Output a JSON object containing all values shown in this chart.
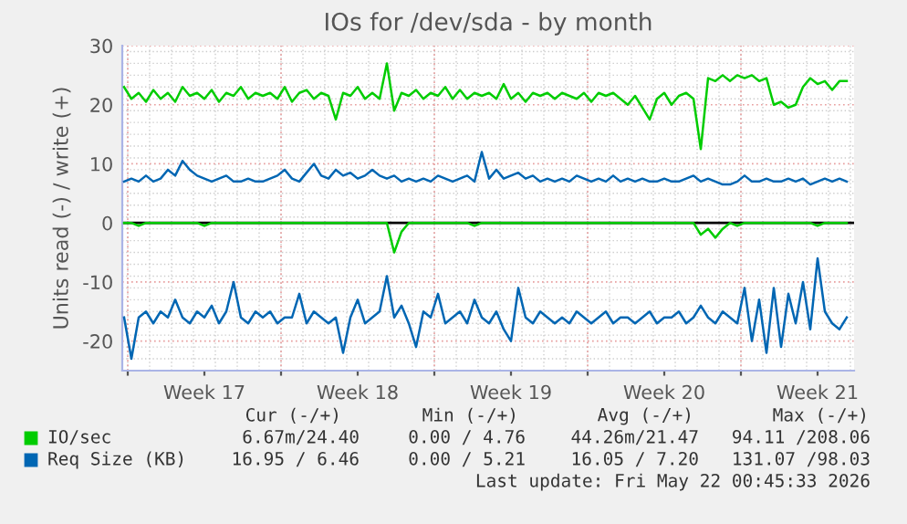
{
  "chart_data": {
    "type": "line",
    "title": "IOs for /dev/sda - by month",
    "ylabel": "Units read (-) / write (+)",
    "x": [
      "2026-04-19T20:00",
      "2026-04-20T04:00",
      "2026-04-20T12:00",
      "2026-04-20T20:00",
      "2026-04-21T04:00",
      "2026-04-21T12:00",
      "2026-04-21T20:00",
      "2026-04-22T04:00",
      "2026-04-22T12:00",
      "2026-04-22T20:00",
      "2026-04-23T04:00",
      "2026-04-23T12:00",
      "2026-04-23T20:00",
      "2026-04-24T04:00",
      "2026-04-24T12:00",
      "2026-04-24T20:00",
      "2026-04-25T04:00",
      "2026-04-25T12:00",
      "2026-04-25T20:00",
      "2026-04-26T04:00",
      "2026-04-26T12:00",
      "2026-04-26T20:00",
      "2026-04-27T04:00",
      "2026-04-27T12:00",
      "2026-04-27T20:00",
      "2026-04-28T04:00",
      "2026-04-28T12:00",
      "2026-04-28T20:00",
      "2026-04-29T04:00",
      "2026-04-29T12:00",
      "2026-04-29T20:00",
      "2026-04-30T04:00",
      "2026-04-30T12:00",
      "2026-04-30T20:00",
      "2026-05-01T04:00",
      "2026-05-01T12:00",
      "2026-05-01T20:00",
      "2026-05-02T04:00",
      "2026-05-02T12:00",
      "2026-05-02T20:00",
      "2026-05-03T04:00",
      "2026-05-03T12:00",
      "2026-05-03T20:00",
      "2026-05-04T04:00",
      "2026-05-04T12:00",
      "2026-05-04T20:00",
      "2026-05-05T04:00",
      "2026-05-05T12:00",
      "2026-05-05T20:00",
      "2026-05-06T04:00",
      "2026-05-06T12:00",
      "2026-05-06T20:00",
      "2026-05-07T04:00",
      "2026-05-07T12:00",
      "2026-05-07T20:00",
      "2026-05-08T04:00",
      "2026-05-08T12:00",
      "2026-05-08T20:00",
      "2026-05-09T04:00",
      "2026-05-09T12:00",
      "2026-05-09T20:00",
      "2026-05-10T04:00",
      "2026-05-10T12:00",
      "2026-05-10T20:00",
      "2026-05-11T04:00",
      "2026-05-11T12:00",
      "2026-05-11T20:00",
      "2026-05-12T04:00",
      "2026-05-12T12:00",
      "2026-05-12T20:00",
      "2026-05-13T04:00",
      "2026-05-13T12:00",
      "2026-05-13T20:00",
      "2026-05-14T04:00",
      "2026-05-14T12:00",
      "2026-05-14T20:00",
      "2026-05-15T04:00",
      "2026-05-15T12:00",
      "2026-05-15T20:00",
      "2026-05-16T04:00",
      "2026-05-16T12:00",
      "2026-05-16T20:00",
      "2026-05-17T04:00",
      "2026-05-17T12:00",
      "2026-05-17T20:00",
      "2026-05-18T04:00",
      "2026-05-18T12:00",
      "2026-05-18T20:00",
      "2026-05-19T04:00",
      "2026-05-19T12:00",
      "2026-05-19T20:00",
      "2026-05-20T04:00",
      "2026-05-20T12:00",
      "2026-05-20T20:00",
      "2026-05-21T04:00",
      "2026-05-21T12:00",
      "2026-05-21T20:00",
      "2026-05-22T04:00",
      "2026-05-22T12:00",
      "2026-05-22T20:00"
    ],
    "series": [
      {
        "name": "IO/sec",
        "color": "#00cc00",
        "values": [
          23,
          21,
          22,
          20.5,
          22.5,
          21,
          22,
          20.5,
          23,
          21.5,
          22,
          21,
          22.5,
          20.5,
          22,
          21.5,
          23,
          21,
          22,
          21.5,
          22,
          21,
          23,
          20.5,
          22,
          22.5,
          21,
          22,
          21.5,
          17.5,
          22,
          21.5,
          23,
          21,
          22,
          21,
          27,
          19,
          22,
          21.5,
          22.5,
          21,
          22,
          21.5,
          23,
          21,
          22.5,
          21,
          22,
          21.5,
          22,
          21,
          23.5,
          21,
          22,
          20.5,
          22,
          21.5,
          22,
          21,
          22,
          21.5,
          21,
          22,
          20.5,
          22,
          21.5,
          22,
          21,
          20,
          21.5,
          19.5,
          17.5,
          21,
          22,
          20,
          21.5,
          22,
          21,
          12.5,
          24.5,
          24,
          25,
          24,
          25,
          24.5,
          25,
          24,
          24.5,
          20,
          20.5,
          19.5,
          20,
          23,
          24.5,
          23.5,
          24,
          22.5,
          24,
          24
        ]
      },
      {
        "color": "#00cc00",
        "values": [
          0,
          0,
          -0.5,
          0,
          0,
          0,
          0,
          0,
          0,
          0,
          0,
          -0.5,
          0,
          0,
          0,
          0,
          0,
          0,
          0,
          0,
          0,
          0,
          0,
          0,
          0,
          0,
          0,
          0,
          0,
          0,
          0,
          0,
          0,
          0,
          0,
          0,
          0,
          -5,
          -1.5,
          0,
          0,
          0,
          0,
          0,
          0,
          0,
          0,
          0,
          -0.5,
          0,
          0,
          0,
          0,
          0,
          0,
          0,
          0,
          0,
          0,
          0,
          0,
          0,
          0,
          0,
          0,
          0,
          0,
          0,
          0,
          0,
          0,
          0,
          0,
          0,
          0,
          0,
          0,
          0,
          0,
          -2,
          -1,
          -2.5,
          -1,
          0,
          -0.5,
          0,
          0,
          0,
          0,
          0,
          0,
          0,
          0,
          0,
          0,
          -0.5,
          0,
          0,
          0,
          0
        ]
      },
      {
        "name": "Req Size (KB)",
        "color": "#0066b3",
        "values": [
          7,
          7.5,
          7,
          8,
          7,
          7.5,
          9,
          8,
          10.5,
          9,
          8,
          7.5,
          7,
          7.5,
          8,
          7,
          7,
          7.5,
          7,
          7,
          7.5,
          8,
          9,
          7.5,
          7,
          8.5,
          10,
          8,
          7.5,
          9,
          8,
          8.5,
          7.5,
          8,
          9,
          8,
          7.5,
          8,
          7,
          7.5,
          7,
          7.5,
          7,
          8,
          7.5,
          7,
          7.5,
          8,
          7,
          12,
          7.5,
          9,
          7.5,
          8,
          8.5,
          7.5,
          8,
          7,
          7.5,
          7,
          7.5,
          7,
          8,
          7.5,
          7,
          7.5,
          7,
          8,
          7,
          7.5,
          7,
          7.5,
          7,
          7,
          7.5,
          7,
          7,
          7.5,
          8,
          7,
          7.5,
          7,
          6.5,
          6.5,
          7,
          8,
          7,
          7,
          7.5,
          7,
          7,
          7.5,
          7,
          7.5,
          6.5,
          7,
          7.5,
          7,
          7.5,
          7
        ]
      },
      {
        "color": "#0066b3",
        "values": [
          -16,
          -23,
          -16,
          -15,
          -17,
          -15,
          -16,
          -13,
          -16,
          -17,
          -15,
          -16,
          -14,
          -17,
          -15,
          -10,
          -16,
          -17,
          -15,
          -16,
          -15,
          -17,
          -16,
          -16,
          -12,
          -17,
          -15,
          -16,
          -17,
          -16,
          -22,
          -16,
          -13,
          -17,
          -16,
          -15,
          -9,
          -16,
          -14,
          -17,
          -21,
          -15,
          -16,
          -12,
          -17,
          -16,
          -15,
          -17,
          -13,
          -16,
          -17,
          -15,
          -18,
          -20,
          -11,
          -16,
          -17,
          -15,
          -16,
          -17,
          -16,
          -17,
          -15,
          -16,
          -17,
          -16,
          -15,
          -17,
          -16,
          -16,
          -17,
          -16,
          -15,
          -17,
          -16,
          -16,
          -15,
          -17,
          -16,
          -14,
          -16,
          -17,
          -15,
          -16,
          -17,
          -11,
          -20,
          -13,
          -22,
          -11,
          -21,
          -12,
          -17,
          -10,
          -18,
          -6,
          -15,
          -17,
          -18,
          -16
        ]
      }
    ],
    "xlim": [
      "2026-04-19T18:00",
      "2026-05-23T04:00"
    ],
    "xticks": [
      {
        "value": "2026-04-20T00:00",
        "label": null
      },
      {
        "value": "2026-04-23T12:00",
        "label": "Week 17"
      },
      {
        "value": "2026-04-27T00:00",
        "label": null
      },
      {
        "value": "2026-04-30T12:00",
        "label": "Week 18"
      },
      {
        "value": "2026-05-04T00:00",
        "label": null
      },
      {
        "value": "2026-05-07T12:00",
        "label": "Week 19"
      },
      {
        "value": "2026-05-11T00:00",
        "label": null
      },
      {
        "value": "2026-05-14T12:00",
        "label": "Week 20"
      },
      {
        "value": "2026-05-18T00:00",
        "label": null
      },
      {
        "value": "2026-05-21T12:00",
        "label": "Week 21"
      }
    ],
    "ylim": [
      -25,
      30
    ],
    "yticks": [
      -20,
      -10,
      0,
      10,
      20,
      30
    ],
    "ref_lines": [
      {
        "axis": "y",
        "value": 0,
        "color": "#000000"
      }
    ],
    "grid": true,
    "legend": "bottom",
    "line_style": "solid",
    "marker": "none",
    "annotations": [
      "Cur (-/+)",
      "Min (-/+)",
      "Avg (-/+)",
      "Max (-/+)",
      "6.67m/24.40",
      "0.00 / 4.76",
      "44.26m/21.47",
      "94.11 /208.06",
      "16.95 / 6.46",
      "0.00 / 5.21",
      "16.05 / 7.20",
      "131.07 /98.03",
      "Last update: Fri May 22 00:45:33 2026"
    ]
  }
}
